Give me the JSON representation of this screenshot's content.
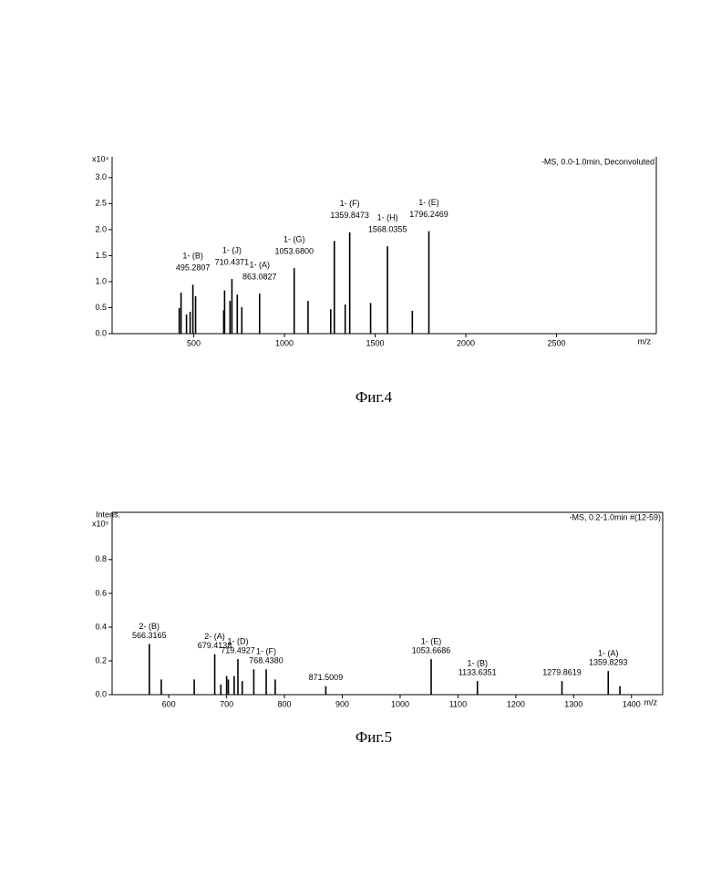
{
  "chart_data": [
    {
      "type": "spectrum",
      "title": "-MS, 0.0-1.0min, Deconvoluted",
      "caption": "Фиг.4",
      "y_multiplier": "x10⁴",
      "x_label": "m/z",
      "color": "#000000",
      "x": [
        420,
        430,
        460,
        480,
        495.2807,
        510,
        665,
        670,
        700,
        710.4371,
        740,
        765,
        863.0827,
        1053.68,
        1130,
        1255,
        1275,
        1335,
        1359.8473,
        1475,
        1568.0355,
        1705,
        1796.2469
      ],
      "values": [
        0.49,
        0.79,
        0.37,
        0.42,
        0.94,
        0.72,
        0.45,
        0.83,
        0.63,
        1.05,
        0.75,
        0.51,
        0.77,
        1.26,
        0.63,
        0.47,
        1.78,
        0.56,
        1.95,
        0.59,
        1.68,
        0.44,
        1.97
      ],
      "peak_names": [
        null,
        null,
        null,
        null,
        "1- (B)",
        null,
        null,
        null,
        null,
        "1- (J)",
        null,
        null,
        "1- (A)",
        "1- (G)",
        null,
        null,
        null,
        null,
        "1- (F)",
        null,
        "1- (H)",
        null,
        "1- (E)"
      ],
      "peak_mz_labels": [
        null,
        null,
        null,
        null,
        "495.2807",
        null,
        null,
        null,
        null,
        "710.4371",
        null,
        null,
        "863.0827",
        "1053.6800",
        null,
        null,
        null,
        null,
        "1359.8473",
        null,
        "1568.0355",
        null,
        "1796.2469"
      ],
      "xlim": [
        50,
        3050
      ],
      "ylim": [
        0,
        3.4
      ],
      "xticks": [
        500,
        1000,
        1500,
        2000,
        2500
      ],
      "yticks": [
        {
          "value": 0,
          "label": "0.0"
        },
        0.5,
        {
          "value": 1,
          "label": "1.0"
        },
        1.5,
        {
          "value": 2,
          "label": "2.0"
        },
        2.5,
        {
          "value": 3,
          "label": "3.0"
        }
      ]
    },
    {
      "type": "spectrum",
      "title": "-MS, 0.2-1.0min #(12-59)",
      "caption": "Фиг.5",
      "y_label": "Intens.",
      "y_multiplier": "x10⁵",
      "x_label": "m/z",
      "color": "#000000",
      "x": [
        566.3165,
        587,
        644,
        679.4138,
        690,
        700,
        703,
        713,
        719.4927,
        727,
        747,
        768.438,
        784,
        871.5009,
        1053.6686,
        1133.6351,
        1279.8619,
        1359.8293,
        1380
      ],
      "values": [
        0.3,
        0.09,
        0.09,
        0.24,
        0.06,
        0.11,
        0.09,
        0.11,
        0.21,
        0.08,
        0.15,
        0.15,
        0.09,
        0.05,
        0.21,
        0.08,
        0.08,
        0.14,
        0.05
      ],
      "peak_names": [
        "2- (B)",
        null,
        null,
        "2- (A)",
        null,
        null,
        null,
        null,
        "1- (D)",
        null,
        null,
        "1- (F)",
        null,
        null,
        "1- (E)",
        "1- (B)",
        null,
        "1- (A)",
        null
      ],
      "peak_mz_labels": [
        "566.3165",
        null,
        null,
        "679.4138",
        null,
        null,
        null,
        null,
        "719.4927",
        null,
        null,
        "768.4380",
        null,
        "871.5009",
        "1053.6686",
        "1133.6351",
        "1279.8619",
        "1359.8293",
        null
      ],
      "xlim": [
        502,
        1454
      ],
      "ylim": [
        0,
        1.08
      ],
      "xticks": [
        600,
        700,
        800,
        900,
        1000,
        1100,
        1200,
        1300,
        1400
      ],
      "yticks": [
        {
          "value": 0,
          "label": "0.0"
        },
        0.2,
        0.4,
        0.6,
        0.8
      ]
    }
  ]
}
